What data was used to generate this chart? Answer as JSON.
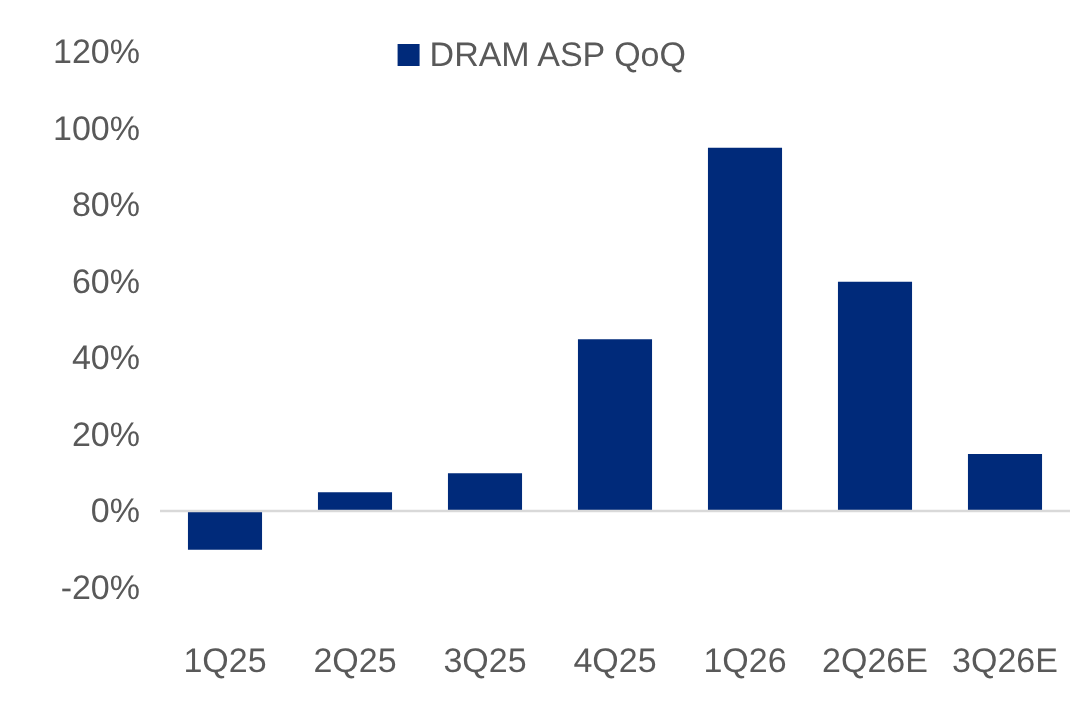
{
  "chart_data": {
    "type": "bar",
    "categories": [
      "1Q25",
      "2Q25",
      "3Q25",
      "4Q25",
      "1Q26",
      "2Q26E",
      "3Q26E"
    ],
    "series": [
      {
        "name": "DRAM ASP QoQ",
        "color": "#002a7a",
        "values": [
          -10,
          5,
          10,
          45,
          95,
          60,
          15
        ]
      }
    ],
    "ylim": [
      -20,
      120
    ],
    "yticks": [
      {
        "value": -20,
        "label": "-20%"
      },
      {
        "value": 0,
        "label": "0%"
      },
      {
        "value": 20,
        "label": "20%"
      },
      {
        "value": 40,
        "label": "40%"
      },
      {
        "value": 60,
        "label": "60%"
      },
      {
        "value": 80,
        "label": "80%"
      },
      {
        "value": 100,
        "label": "100%"
      },
      {
        "value": 120,
        "label": "120%"
      }
    ],
    "ref_lines": [
      {
        "axis": "y",
        "value": 0,
        "color": "#d9d9d9",
        "line_style": "solid"
      }
    ],
    "grid": false,
    "legend": "top"
  }
}
